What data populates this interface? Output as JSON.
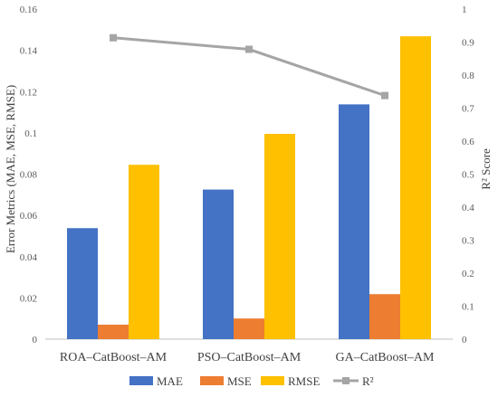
{
  "chart_data": {
    "type": "bar",
    "categories": [
      "ROA–CatBoost–AM",
      "PSO–CatBoost–AM",
      "GA–CatBoost–AM"
    ],
    "series": [
      {
        "name": "MAE",
        "type": "bar",
        "axis": "left",
        "color": "#4472C4",
        "values": [
          0.0538,
          0.0725,
          0.1138
        ]
      },
      {
        "name": "MSE",
        "type": "bar",
        "axis": "left",
        "color": "#ED7D31",
        "values": [
          0.007,
          0.01,
          0.0218
        ]
      },
      {
        "name": "RMSE",
        "type": "bar",
        "axis": "left",
        "color": "#FFC000",
        "values": [
          0.0845,
          0.0995,
          0.1468
        ]
      },
      {
        "name": "R²",
        "type": "line",
        "axis": "right",
        "color": "#A5A5A5",
        "values": [
          0.913,
          0.878,
          0.738
        ]
      }
    ],
    "ylabel": "Error Metrics (MAE, MSE, RMSE)",
    "ylabel_right": "R² Score",
    "ylim": [
      0,
      0.16
    ],
    "ylim_right": [
      0,
      1
    ],
    "yticks": [
      "0",
      "0.02",
      "0.04",
      "0.06",
      "0.08",
      "0.1",
      "0.12",
      "0.14",
      "0.16"
    ],
    "yticks_right": [
      "0",
      "0.1",
      "0.2",
      "0.3",
      "0.4",
      "0.5",
      "0.6",
      "0.7",
      "0.8",
      "0.9",
      "1"
    ],
    "grid": false,
    "legend_position": "bottom"
  }
}
